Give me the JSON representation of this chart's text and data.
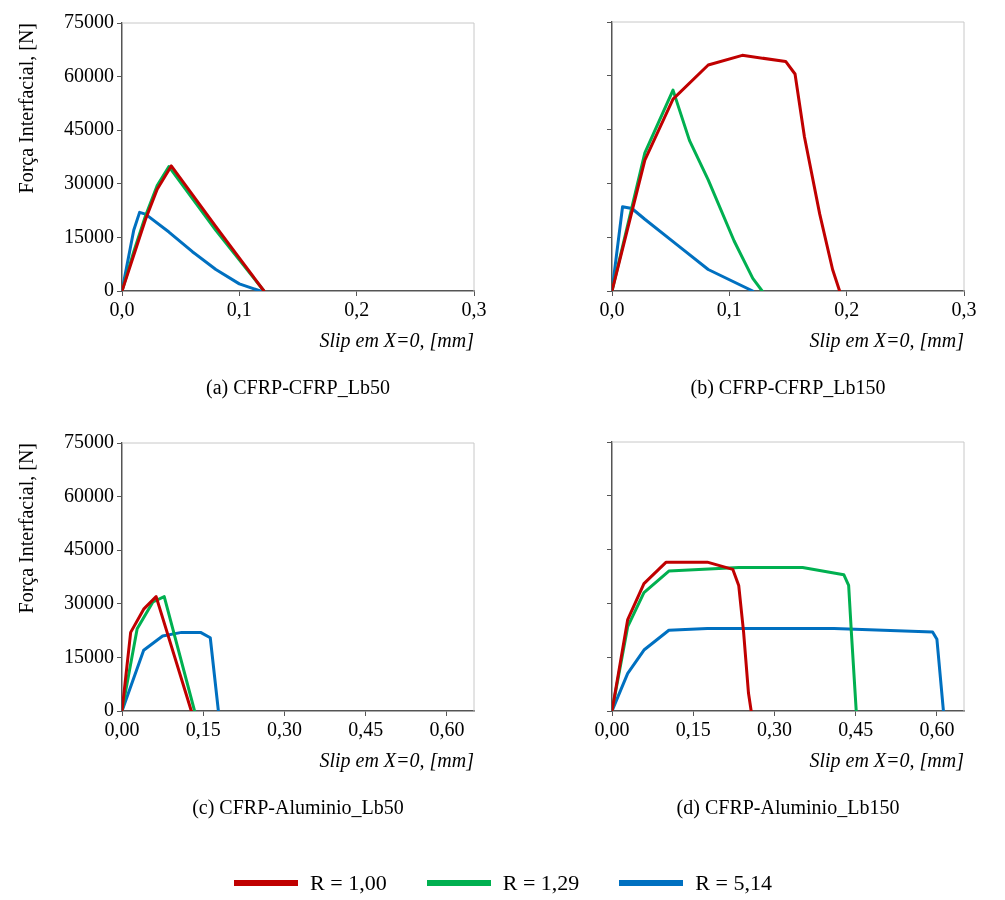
{
  "chart_data": [
    {
      "type": "line",
      "title": "(a)  CFRP-CFRP_Lb50",
      "xlabel": "Slip em X=0, [mm]",
      "ylabel": "Força Interfacial, [N]",
      "xlim": [
        0,
        0.3
      ],
      "xticks": [
        {
          "value": 0,
          "label": "0,0"
        },
        {
          "value": 0.1,
          "label": "0,1"
        },
        {
          "value": 0.2,
          "label": "0,2"
        },
        {
          "value": 0.3,
          "label": "0,3"
        }
      ],
      "ylim": [
        0,
        75000
      ],
      "yticks": [
        0,
        15000,
        30000,
        45000,
        60000,
        75000
      ],
      "grid": false,
      "marker": "none",
      "line_style": "solid",
      "legend": "bottom",
      "series": [
        {
          "name": "R = 1,00",
          "color": "#c00000",
          "x": [
            0,
            0.01,
            0.02,
            0.03,
            0.042,
            0.08,
            0.121
          ],
          "values": [
            0,
            10000,
            20000,
            28500,
            35000,
            18000,
            0
          ]
        },
        {
          "name": "R = 1,29",
          "color": "#00b050",
          "x": [
            0,
            0.01,
            0.02,
            0.03,
            0.04,
            0.08,
            0.121
          ],
          "values": [
            0,
            11000,
            21000,
            29500,
            34800,
            17000,
            0
          ]
        },
        {
          "name": "R = 5,14",
          "color": "#0070c0",
          "x": [
            0,
            0.01,
            0.015,
            0.02,
            0.04,
            0.06,
            0.08,
            0.1,
            0.118
          ],
          "values": [
            0,
            17000,
            22000,
            21500,
            16500,
            11000,
            6000,
            2000,
            0
          ]
        }
      ]
    },
    {
      "type": "line",
      "title": "(b)  CFRP-CFRP_Lb150",
      "xlabel": "Slip em X=0, [mm]",
      "xlim": [
        0,
        0.3
      ],
      "xticks": [
        {
          "value": 0,
          "label": "0,0"
        },
        {
          "value": 0.1,
          "label": "0,1"
        },
        {
          "value": 0.2,
          "label": "0,2"
        },
        {
          "value": 0.3,
          "label": "0,3"
        }
      ],
      "ylim": [
        0,
        75000
      ],
      "yticks": [
        0,
        15000,
        30000,
        45000,
        60000,
        75000
      ],
      "tick_labels": "x",
      "grid": false,
      "marker": "none",
      "line_style": "solid",
      "series": [
        {
          "color": "#c00000",
          "x": [
            0,
            0.028,
            0.052,
            0.082,
            0.111,
            0.148,
            0.156,
            0.164,
            0.177,
            0.188,
            0.194
          ],
          "values": [
            0,
            36500,
            53500,
            63000,
            65700,
            64000,
            60500,
            43000,
            21500,
            6000,
            0
          ]
        },
        {
          "color": "#00b050",
          "x": [
            0,
            0.028,
            0.052,
            0.066,
            0.082,
            0.104,
            0.12,
            0.128
          ],
          "values": [
            0,
            38500,
            56000,
            42000,
            31000,
            14000,
            3500,
            0
          ]
        },
        {
          "color": "#0070c0",
          "x": [
            0,
            0.009,
            0.017,
            0.028,
            0.055,
            0.082,
            0.12
          ],
          "values": [
            0,
            23500,
            23000,
            20000,
            13000,
            6000,
            0
          ]
        }
      ]
    },
    {
      "type": "line",
      "title": "(c)  CFRP-Aluminio_Lb50",
      "xlabel": "Slip em X=0, [mm]",
      "ylabel": "Força Interfacial, [N]",
      "xlim": [
        0,
        0.65
      ],
      "xticks": [
        {
          "value": 0,
          "label": "0,00"
        },
        {
          "value": 0.15,
          "label": "0,15"
        },
        {
          "value": 0.3,
          "label": "0,30"
        },
        {
          "value": 0.45,
          "label": "0,45"
        },
        {
          "value": 0.6,
          "label": "0,60"
        }
      ],
      "ylim": [
        0,
        75000
      ],
      "yticks": [
        0,
        15000,
        30000,
        45000,
        60000,
        75000
      ],
      "grid": false,
      "marker": "none",
      "line_style": "solid",
      "series": [
        {
          "color": "#c00000",
          "x": [
            0,
            0.016,
            0.04,
            0.063,
            0.128
          ],
          "values": [
            0,
            22000,
            28500,
            32000,
            0
          ]
        },
        {
          "color": "#00b050",
          "x": [
            0,
            0.028,
            0.057,
            0.078,
            0.134
          ],
          "values": [
            0,
            23000,
            30500,
            32000,
            0
          ]
        },
        {
          "color": "#0070c0",
          "x": [
            0,
            0.04,
            0.075,
            0.11,
            0.145,
            0.163,
            0.178
          ],
          "values": [
            0,
            17000,
            21000,
            22000,
            22000,
            20500,
            0
          ]
        }
      ]
    },
    {
      "type": "line",
      "title": "(d)  CFRP-Aluminio_Lb150",
      "xlabel": "Slip em X=0, [mm]",
      "xlim": [
        0,
        0.65
      ],
      "xticks": [
        {
          "value": 0,
          "label": "0,00"
        },
        {
          "value": 0.15,
          "label": "0,15"
        },
        {
          "value": 0.3,
          "label": "0,30"
        },
        {
          "value": 0.45,
          "label": "0,45"
        },
        {
          "value": 0.6,
          "label": "0,60"
        }
      ],
      "ylim": [
        0,
        75000
      ],
      "yticks": [
        0,
        15000,
        30000,
        45000,
        60000,
        75000
      ],
      "tick_labels": "x",
      "grid": false,
      "marker": "none",
      "line_style": "solid",
      "series": [
        {
          "color": "#c00000",
          "x": [
            0,
            0.029,
            0.059,
            0.1,
            0.176,
            0.223,
            0.234,
            0.243,
            0.252,
            0.257
          ],
          "values": [
            0,
            25500,
            35500,
            41500,
            41500,
            39500,
            35000,
            22000,
            5000,
            0
          ]
        },
        {
          "color": "#00b050",
          "x": [
            0,
            0.029,
            0.059,
            0.105,
            0.234,
            0.352,
            0.428,
            0.437,
            0.442,
            0.451
          ],
          "values": [
            0,
            23500,
            33000,
            39000,
            40000,
            40000,
            38000,
            35000,
            22000,
            0
          ]
        },
        {
          "color": "#0070c0",
          "x": [
            0,
            0.029,
            0.059,
            0.105,
            0.176,
            0.41,
            0.592,
            0.6,
            0.612
          ],
          "values": [
            0,
            10500,
            17000,
            22500,
            23000,
            23000,
            22000,
            20000,
            0
          ]
        }
      ]
    }
  ]
}
